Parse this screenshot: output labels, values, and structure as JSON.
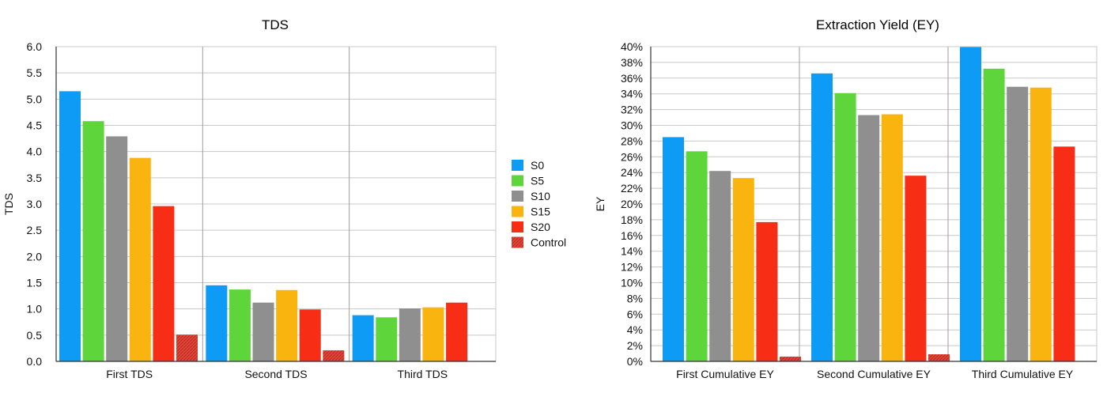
{
  "chart_data": [
    {
      "type": "bar",
      "title": "TDS",
      "xlabel": "",
      "ylabel": "TDS",
      "ylim": [
        0,
        6.0
      ],
      "yticks": [
        "0.0",
        "0.5",
        "1.0",
        "1.5",
        "2.0",
        "2.5",
        "3.0",
        "3.5",
        "4.0",
        "4.5",
        "5.0",
        "5.5",
        "6.0"
      ],
      "categories": [
        "First TDS",
        "Second TDS",
        "Third TDS"
      ],
      "grid": true,
      "series": [
        {
          "name": "S0",
          "values": [
            5.15,
            1.45,
            0.88
          ]
        },
        {
          "name": "S5",
          "values": [
            4.58,
            1.37,
            0.84
          ]
        },
        {
          "name": "S10",
          "values": [
            4.29,
            1.12,
            1.01
          ]
        },
        {
          "name": "S15",
          "values": [
            3.88,
            1.36,
            1.03
          ]
        },
        {
          "name": "S20",
          "values": [
            2.96,
            0.99,
            1.12
          ]
        },
        {
          "name": "Control",
          "values": [
            0.51,
            0.21,
            null
          ]
        }
      ]
    },
    {
      "type": "bar",
      "title": "Extraction Yield (EY)",
      "xlabel": "",
      "ylabel": "EY",
      "ylim": [
        0,
        40
      ],
      "yticks": [
        "0%",
        "2%",
        "4%",
        "6%",
        "8%",
        "10%",
        "12%",
        "14%",
        "16%",
        "18%",
        "20%",
        "22%",
        "24%",
        "26%",
        "28%",
        "30%",
        "32%",
        "34%",
        "36%",
        "38%",
        "40%"
      ],
      "categories": [
        "First Cumulative EY",
        "Second Cumulative EY",
        "Third Cumulative EY"
      ],
      "grid": true,
      "series": [
        {
          "name": "S0",
          "values": [
            28.5,
            36.6,
            40.0
          ]
        },
        {
          "name": "S5",
          "values": [
            26.7,
            34.1,
            37.2
          ]
        },
        {
          "name": "S10",
          "values": [
            24.2,
            31.3,
            34.9
          ]
        },
        {
          "name": "S15",
          "values": [
            23.3,
            31.4,
            34.8
          ]
        },
        {
          "name": "S20",
          "values": [
            17.7,
            23.6,
            27.3
          ]
        },
        {
          "name": "Control",
          "values": [
            0.6,
            0.9,
            null
          ]
        }
      ]
    }
  ],
  "legend": {
    "placement": "center",
    "items": [
      "S0",
      "S5",
      "S10",
      "S15",
      "S20",
      "Control"
    ]
  },
  "colors": {
    "S0": "#0d9bf5",
    "S5": "#5ed63b",
    "S10": "#8f8f8f",
    "S15": "#f9b40f",
    "S20": "#f72d15",
    "Control": "#e0453a",
    "grid": "#c8c8c8",
    "separator": "#9e9e9e",
    "axis": "#333333"
  }
}
